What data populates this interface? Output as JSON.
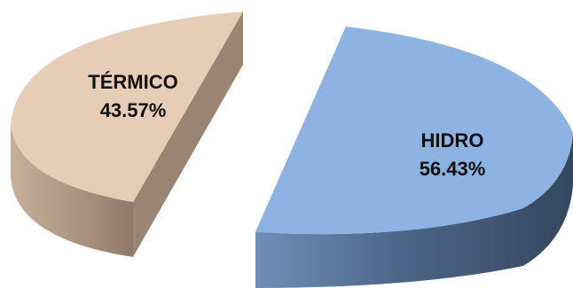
{
  "chart_data": {
    "type": "pie",
    "style": "3d-exploded",
    "series": [
      {
        "name": "",
        "slices": [
          {
            "label": "HIDRO",
            "value": 56.43,
            "value_label": "56.43%",
            "color": "#8db3e2",
            "side_color": "#3c5374"
          },
          {
            "label": "TÉRMICO",
            "value": 43.57,
            "value_label": "43.57%",
            "color": "#e6cdb5",
            "side_color": "#ac9682"
          }
        ]
      }
    ]
  }
}
